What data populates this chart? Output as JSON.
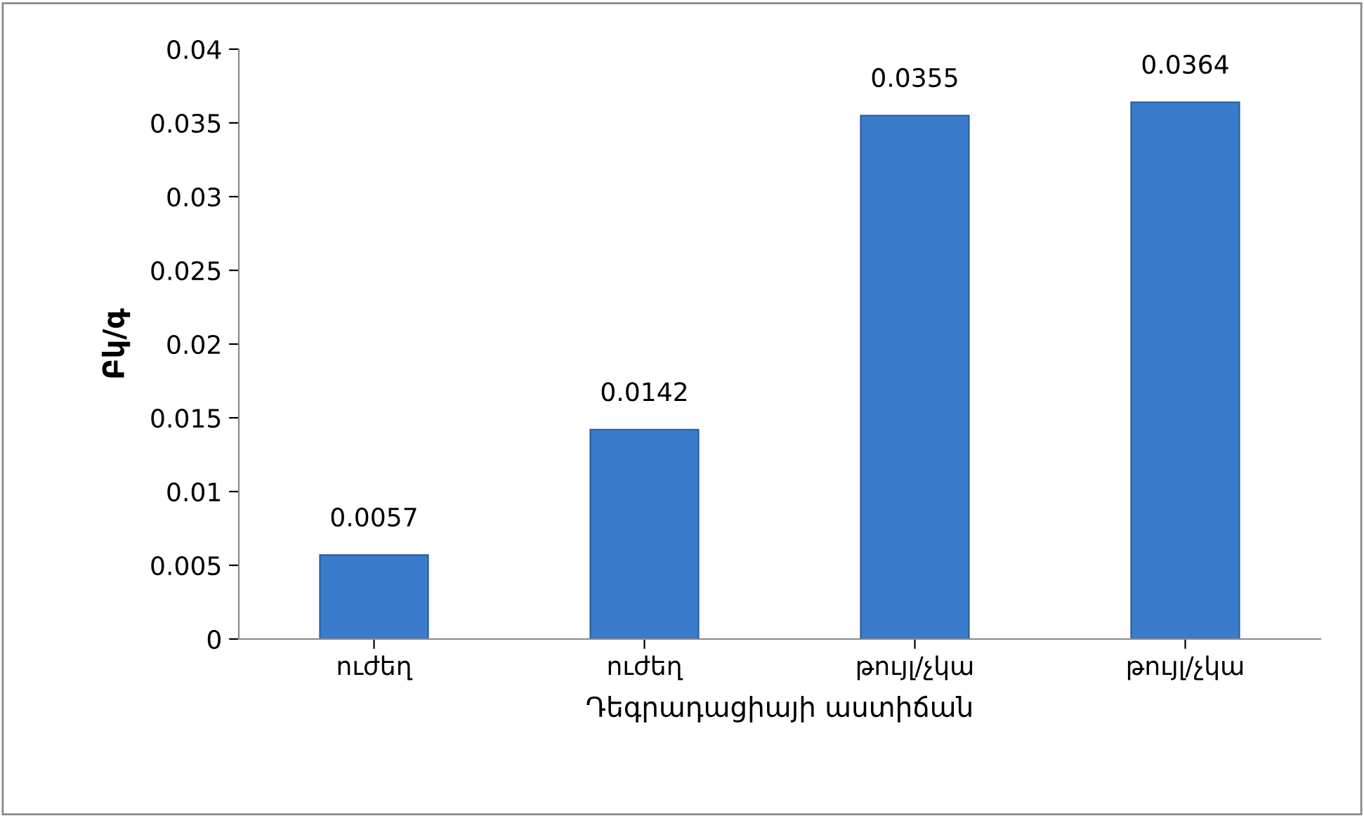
{
  "chart_data": {
    "type": "bar",
    "xlabel": "Դեգրադացիայի աստիճան",
    "ylabel": "Բկ/գ",
    "categories": [
      "ուժեղ",
      "ուժեղ",
      "թույլ/չկա",
      "թույլ/չկա"
    ],
    "values": [
      0.0057,
      0.0142,
      0.0355,
      0.0364
    ],
    "color": "#3b7bcb",
    "value_labels": [
      "0.0057",
      "0.0142",
      "0.0355",
      "0.0364"
    ],
    "ylim": [
      0,
      0.04
    ],
    "yticks": [
      {
        "value": 0,
        "label": "0"
      },
      {
        "value": 0.005,
        "label": "0.005"
      },
      {
        "value": 0.01,
        "label": "0.01"
      },
      {
        "value": 0.015,
        "label": "0.015"
      },
      {
        "value": 0.02,
        "label": "0.02"
      },
      {
        "value": 0.025,
        "label": "0.025"
      },
      {
        "value": 0.03,
        "label": "0.03"
      },
      {
        "value": 0.035,
        "label": "0.035"
      },
      {
        "value": 0.04,
        "label": "0.04"
      }
    ],
    "grid": false,
    "legend": false
  }
}
